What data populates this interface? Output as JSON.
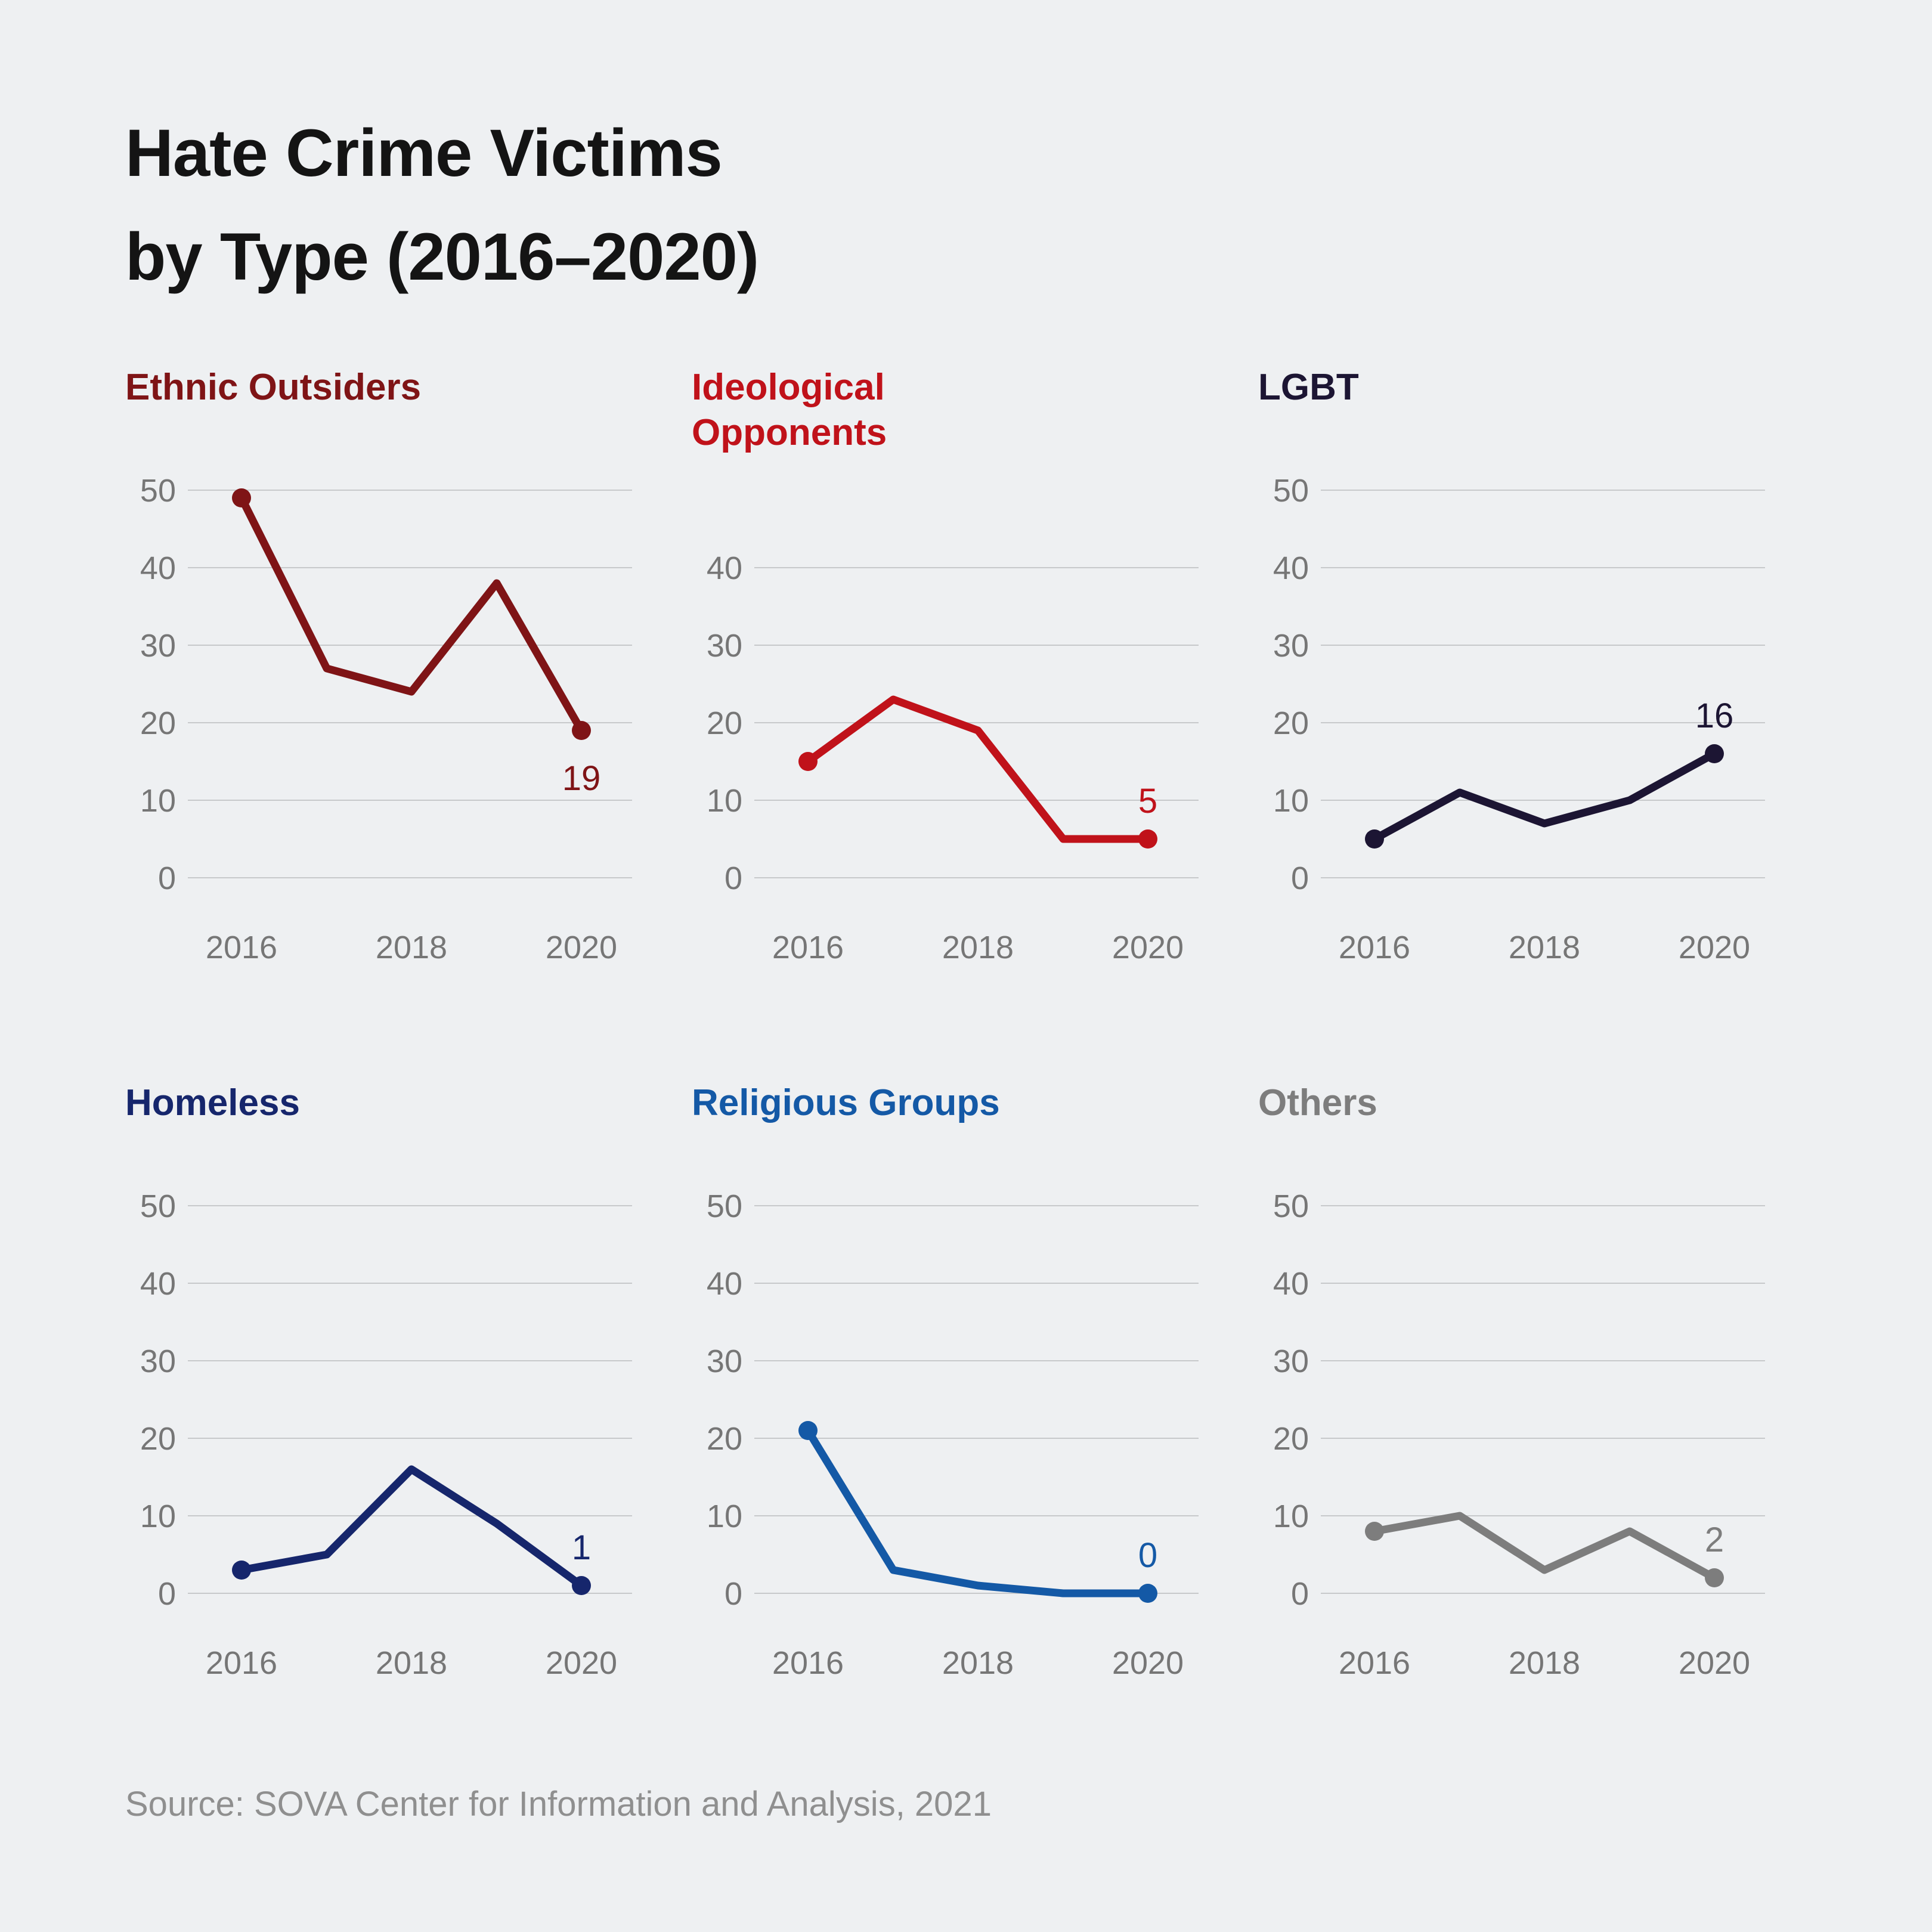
{
  "page": {
    "background": "#eef0f2"
  },
  "header": {
    "title_line1": "Hate Crime Victims",
    "title_line2": "by Type (2016–2020)"
  },
  "source": {
    "text": "Source: SOVA Center for Information and Analysis, 2021"
  },
  "chart_data": {
    "type": "line",
    "layout": "small-multiples-3x2",
    "x": [
      2016,
      2017,
      2018,
      2019,
      2020
    ],
    "x_tick_labels": [
      "2016",
      "2018",
      "2020"
    ],
    "grid": "horizontal-only",
    "marker_style": "dots-on-first-and-last-point",
    "styles": {
      "grid_color": "#c7c9cb",
      "axis_label_color": "#767676",
      "background": "#eef0f2"
    },
    "panels": [
      {
        "title": "Ethnic Outsiders",
        "color": "#7F1416",
        "values": [
          49,
          27,
          24,
          38,
          19
        ],
        "end_label": "19",
        "end_label_position": "below",
        "yticks": [
          0,
          10,
          20,
          30,
          40,
          50
        ],
        "ylim": [
          0,
          50
        ]
      },
      {
        "title": "Ideological\nOpponents",
        "color": "#C0121A",
        "values": [
          15,
          23,
          19,
          5,
          5
        ],
        "end_label": "5",
        "end_label_position": "above",
        "yticks": [
          0,
          10,
          20,
          30,
          40
        ],
        "ylim": [
          0,
          40
        ]
      },
      {
        "title": "LGBT",
        "color": "#1C1533",
        "values": [
          5,
          11,
          7,
          10,
          16
        ],
        "end_label": "16",
        "end_label_position": "above",
        "yticks": [
          0,
          10,
          20,
          30,
          40,
          50
        ],
        "ylim": [
          0,
          50
        ]
      },
      {
        "title": "Homeless",
        "color": "#16266C",
        "values": [
          3,
          5,
          16,
          9,
          1
        ],
        "end_label": "1",
        "end_label_position": "above",
        "yticks": [
          0,
          10,
          20,
          30,
          40,
          50
        ],
        "ylim": [
          0,
          50
        ]
      },
      {
        "title": "Religious Groups",
        "color": "#1459A6",
        "values": [
          21,
          3,
          1,
          0,
          0
        ],
        "end_label": "0",
        "end_label_position": "above",
        "yticks": [
          0,
          10,
          20,
          30,
          40,
          50
        ],
        "ylim": [
          0,
          50
        ]
      },
      {
        "title": "Others",
        "color": "#7D7D7D",
        "values": [
          8,
          10,
          3,
          8,
          2
        ],
        "end_label": "2",
        "end_label_position": "above",
        "yticks": [
          0,
          10,
          20,
          30,
          40,
          50
        ],
        "ylim": [
          0,
          50
        ]
      }
    ]
  }
}
